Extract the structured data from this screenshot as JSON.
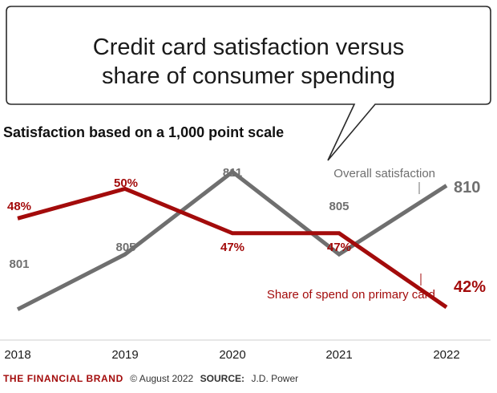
{
  "title": {
    "line1": "Credit card satisfaction versus",
    "line2": "share of consumer spending"
  },
  "chart_data": {
    "type": "line",
    "title": "Credit card satisfaction versus share of consumer spending",
    "subtitle": "Satisfaction based on a 1,000 point scale",
    "categories": [
      "2018",
      "2019",
      "2020",
      "2021",
      "2022"
    ],
    "series": [
      {
        "name": "Overall satisfaction",
        "unit": "points",
        "values": [
          801,
          805,
          811,
          805,
          810
        ],
        "labels": [
          "801",
          "805",
          "811",
          "805",
          "810"
        ],
        "color": "#6f6f6f",
        "ylim": [
          799,
          813
        ]
      },
      {
        "name": "Share of spend on primary card",
        "unit": "percent",
        "values": [
          48,
          50,
          47,
          47,
          42
        ],
        "labels": [
          "48%",
          "50%",
          "47%",
          "47%",
          "42%"
        ],
        "color": "#a30b0b",
        "ylim": [
          40,
          53
        ]
      }
    ],
    "xlabel": "",
    "ylabel": "",
    "grid": false,
    "legend": "inline annotations"
  },
  "footer": {
    "brand": "THE FINANCIAL BRAND",
    "copyright": "© August 2022",
    "source_label": "SOURCE:",
    "source": "J.D. Power"
  },
  "colors": {
    "satisfaction": "#6f6f6f",
    "share": "#a30b0b",
    "axis": "#cfcfcf",
    "text": "#1a1a1a"
  }
}
